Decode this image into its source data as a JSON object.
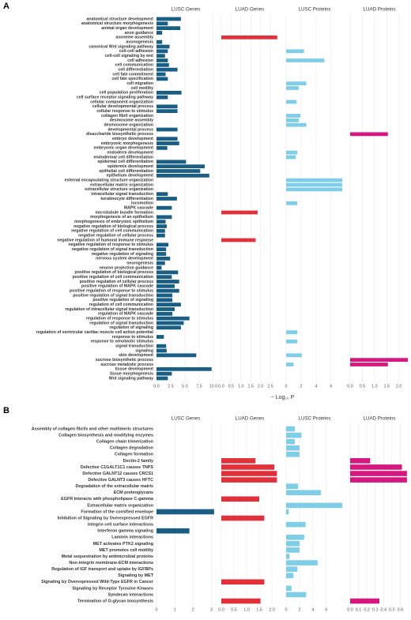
{
  "chart_data": [
    {
      "type": "bar",
      "orientation": "horizontal",
      "panel_label": "A",
      "x_label": "− Log₁₀ P",
      "categories": [
        "anatomical structure development",
        "anatomical structure morphogenesis",
        "animal organ development",
        "axon guidance",
        "axoneme assembly",
        "axonogenesis",
        "canonical Wnt signaling pathway",
        "cell-cell adhesion",
        "cell-cell signaling by wnt",
        "cell adhesion",
        "cell communication",
        "cell differentiation",
        "cell fate commitment",
        "cell fate specification",
        "cell migration",
        "cell motility",
        "cell population proliferation",
        "cell surface receptor signaling pathway",
        "cellular component organization",
        "cellular developmental process",
        "cellular response to stimulus",
        "collagen fibril organization",
        "desmosome assembly",
        "desmosome organization",
        "developmental process",
        "disaccharide biosynthetic process",
        "embryo development",
        "embryonic morphogenesis",
        "embryonic organ development",
        "endoderm development",
        "endodermal cell differentiation",
        "epidermal cell differentiation",
        "epidermis development",
        "epithelial cell differentiation",
        "epithelium development",
        "external encapsulating structure organization",
        "extracellular matrix organization",
        "extracellular structure organization",
        "intracellular signal transduction",
        "keratinocyte differentiation",
        "locomotion",
        "MAPK cascade",
        "microtubule bundle formation",
        "morphogenesis of an epithelium",
        "morphogenesis of embryonic epithelium",
        "negative regulation of biological process",
        "negative regulation of cell communication",
        "negative regulation of cellular process",
        "negative regulation of humoral immune response",
        "negative regulation of response to stimulus",
        "negative regulation of signal transduction",
        "negative regulation of signaling",
        "nervous system development",
        "neurogenesis",
        "neuron projection guidance",
        "positive regulation of biological process",
        "positive regulation of cell communication",
        "positive regulation of cellular process",
        "positive regulation of MAPK cascade",
        "positive regulation of response to stimulus",
        "positive regulation of signal transduction",
        "positive regulation of signaling",
        "regulation of cell communication",
        "regulation of intracellular signal transduction",
        "regulation of MAPK cascade",
        "regulation of response to stimulus",
        "regulation of signal transduction",
        "regulation of signaling",
        "regulation of ventricular cardiac muscle cell action potential",
        "response to stimulus",
        "response to xenobiotic stimulus",
        "signal transduction",
        "signaling",
        "skin development",
        "sucrose biosynthetic process",
        "sucrose metabolic process",
        "tissue development",
        "tissue morphogenesis",
        "Wnt signaling pathway"
      ],
      "series": [
        {
          "name": "LUSC Genes",
          "color": "#1b5e84",
          "xlim": [
            0,
            10.3
          ],
          "xticks": [
            {
              "value": 0,
              "label": "0.0"
            },
            2.5,
            {
              "value": 5,
              "label": "5.0"
            },
            7.5,
            {
              "value": 10,
              "label": "10.0"
            }
          ],
          "values": [
            4.3,
            2.0,
            4.2,
            1.0,
            null,
            1.0,
            2.3,
            2.0,
            1.5,
            2.0,
            2.2,
            3.7,
            1.6,
            2.0,
            null,
            null,
            4.4,
            2.0,
            null,
            3.7,
            3.7,
            null,
            null,
            null,
            3.7,
            null,
            3.7,
            4.0,
            1.9,
            null,
            null,
            5.2,
            8.5,
            7.7,
            9.3,
            null,
            null,
            null,
            2.0,
            3.6,
            null,
            2.7,
            null,
            2.7,
            1.6,
            1.8,
            1.5,
            1.5,
            null,
            2.1,
            1.7,
            1.7,
            2.4,
            1.5,
            0.9,
            3.8,
            2.7,
            4.0,
            3.2,
            4.0,
            2.8,
            2.8,
            4.3,
            3.2,
            2.8,
            5.8,
            4.8,
            4.3,
            null,
            1.3,
            null,
            1.7,
            1.8,
            7.0,
            null,
            null,
            9.7,
            2.7,
            2.0
          ]
        },
        {
          "name": "LUAD Genes",
          "color": "#e1323b",
          "xlim": [
            0,
            2.9
          ],
          "xticks": [
            {
              "value": 0,
              "label": "0.0"
            },
            0.5,
            {
              "value": 1,
              "label": "1.0"
            },
            1.5,
            {
              "value": 2,
              "label": "2.0"
            },
            2.5
          ],
          "values": [
            null,
            null,
            null,
            null,
            2.85,
            null,
            null,
            null,
            null,
            null,
            null,
            null,
            null,
            null,
            null,
            null,
            null,
            null,
            null,
            null,
            null,
            null,
            null,
            null,
            null,
            null,
            null,
            null,
            null,
            null,
            null,
            null,
            null,
            null,
            null,
            null,
            null,
            null,
            null,
            null,
            null,
            null,
            1.85,
            null,
            null,
            null,
            null,
            null,
            1.75,
            null,
            null,
            null,
            null,
            null,
            null,
            null,
            null,
            null,
            null,
            null,
            null,
            null,
            null,
            null,
            null,
            null,
            null,
            null,
            null,
            null,
            null,
            null,
            null,
            null,
            null,
            null,
            null,
            null,
            null
          ]
        },
        {
          "name": "LUSC Proteins",
          "color": "#7fcde6",
          "xlim": [
            0,
            7.6
          ],
          "xticks": [
            0,
            2,
            4,
            6
          ],
          "values": [
            null,
            null,
            null,
            null,
            null,
            null,
            null,
            2.4,
            null,
            5.1,
            null,
            null,
            null,
            null,
            2.7,
            1.7,
            null,
            null,
            1.4,
            null,
            null,
            1.9,
            1.7,
            2.7,
            null,
            null,
            null,
            null,
            null,
            1.5,
            1.3,
            null,
            null,
            null,
            null,
            7.5,
            7.5,
            7.5,
            null,
            null,
            1.5,
            null,
            null,
            null,
            null,
            null,
            null,
            null,
            null,
            null,
            null,
            null,
            null,
            null,
            null,
            null,
            null,
            null,
            null,
            null,
            null,
            null,
            null,
            null,
            null,
            null,
            null,
            null,
            1.5,
            null,
            1.5,
            null,
            null,
            2.1,
            null,
            1.0,
            null,
            null,
            null
          ]
        },
        {
          "name": "LUAD Proteins",
          "color": "#d6177f",
          "xlim": [
            0,
            2.4
          ],
          "xticks": [
            {
              "value": 0,
              "label": "0.0"
            },
            0.5,
            {
              "value": 1,
              "label": "1.0"
            },
            1.5,
            {
              "value": 2,
              "label": "2.0"
            }
          ],
          "values": [
            null,
            null,
            null,
            null,
            null,
            null,
            null,
            null,
            null,
            null,
            null,
            null,
            null,
            null,
            null,
            null,
            null,
            null,
            null,
            null,
            null,
            null,
            null,
            null,
            null,
            1.55,
            null,
            null,
            null,
            null,
            null,
            null,
            null,
            null,
            null,
            null,
            null,
            null,
            null,
            null,
            null,
            null,
            null,
            null,
            null,
            null,
            null,
            null,
            null,
            null,
            null,
            null,
            null,
            null,
            null,
            null,
            null,
            null,
            null,
            null,
            null,
            null,
            null,
            null,
            null,
            null,
            null,
            null,
            null,
            null,
            null,
            null,
            null,
            null,
            2.37,
            1.55,
            null,
            null,
            null
          ]
        }
      ]
    },
    {
      "type": "bar",
      "orientation": "horizontal",
      "panel_label": "B",
      "categories": [
        "Assembly of collagen fibrils and other multimeric structures",
        "Collagen biosynthesis and modifying enzymes",
        "Collagen chain trimerization",
        "Collagen degradation",
        "Collagen formation",
        "Dectin-2 family",
        "Defective C1GALT1C1 causes TNPS",
        "Defective GALNT12 causes CRCS1",
        "Defective GALNT3 causes HFTC",
        "Degradation of the extracellular matrix",
        "ECM proteoglycans",
        "EGFR interacts with phospholipase C-gamma",
        "Extracellular matrix organization",
        "Formation of the cornified envelope",
        "Inhibition of Signaling by Overexpressed EGFR",
        "Integrin cell surface interactions",
        "Interferon gamma signaling",
        "Laminin interactions",
        "MET activates PTK2 signaling",
        "MET promotes cell motility",
        "Metal sequestration by antimicrobial proteins",
        "Non-integrin membrane-ECM interactions",
        "Regulation of IGF transport and uptake by IGFBPs",
        "Signaling by MET",
        "Signaling by Overexpressed Wild-Type EGFR in Cancer",
        "Signaling by Receptor Tyrosine Kinases",
        "Syndecan interactions",
        "Termination of O-glycan biosynthesis"
      ],
      "series": [
        {
          "name": "LUSC Genes",
          "color": "#1b5e84",
          "xlim": [
            0,
            3.2
          ],
          "xticks": [
            0,
            1,
            2,
            3
          ],
          "values": [
            null,
            null,
            null,
            null,
            null,
            null,
            null,
            null,
            null,
            null,
            null,
            null,
            null,
            3.15,
            null,
            null,
            1.8,
            null,
            null,
            null,
            null,
            null,
            null,
            null,
            null,
            null,
            null,
            null
          ]
        },
        {
          "name": "LUAD Genes",
          "color": "#e1323b",
          "xlim": [
            0,
            2.25
          ],
          "xticks": [
            {
              "value": 0,
              "label": "0.0"
            },
            0.5,
            {
              "value": 1,
              "label": "1.0"
            },
            1.5,
            {
              "value": 2,
              "label": "2.0"
            }
          ],
          "values": [
            null,
            null,
            null,
            null,
            null,
            1.35,
            2.1,
            2.2,
            2.2,
            null,
            null,
            1.5,
            null,
            null,
            1.7,
            null,
            null,
            null,
            null,
            null,
            null,
            null,
            null,
            null,
            1.7,
            null,
            null,
            1.55
          ]
        },
        {
          "name": "LUSC Proteins",
          "color": "#7fcde6",
          "xlim": [
            0,
            8.5
          ],
          "xticks": [
            0,
            2,
            4,
            6
          ],
          "values": [
            1.3,
            2.3,
            1.3,
            2.0,
            2.0,
            null,
            null,
            null,
            null,
            1.8,
            5.2,
            null,
            8.4,
            0.4,
            null,
            2.9,
            null,
            2.7,
            2.0,
            2.0,
            0.5,
            4.7,
            1.7,
            1.1,
            null,
            0.8,
            3.0,
            null
          ]
        },
        {
          "name": "LUAD Proteins",
          "color": "#d6177f",
          "xlim": [
            0,
            0.7
          ],
          "xticks": [
            {
              "value": 0,
              "label": "0.0"
            },
            0.1,
            0.2,
            0.3,
            0.4,
            0.5,
            0.6
          ],
          "values": [
            null,
            null,
            null,
            null,
            null,
            0.24,
            0.62,
            0.68,
            0.68,
            null,
            null,
            null,
            null,
            null,
            null,
            null,
            null,
            null,
            null,
            null,
            null,
            null,
            null,
            null,
            null,
            null,
            null,
            0.35
          ]
        }
      ]
    }
  ]
}
